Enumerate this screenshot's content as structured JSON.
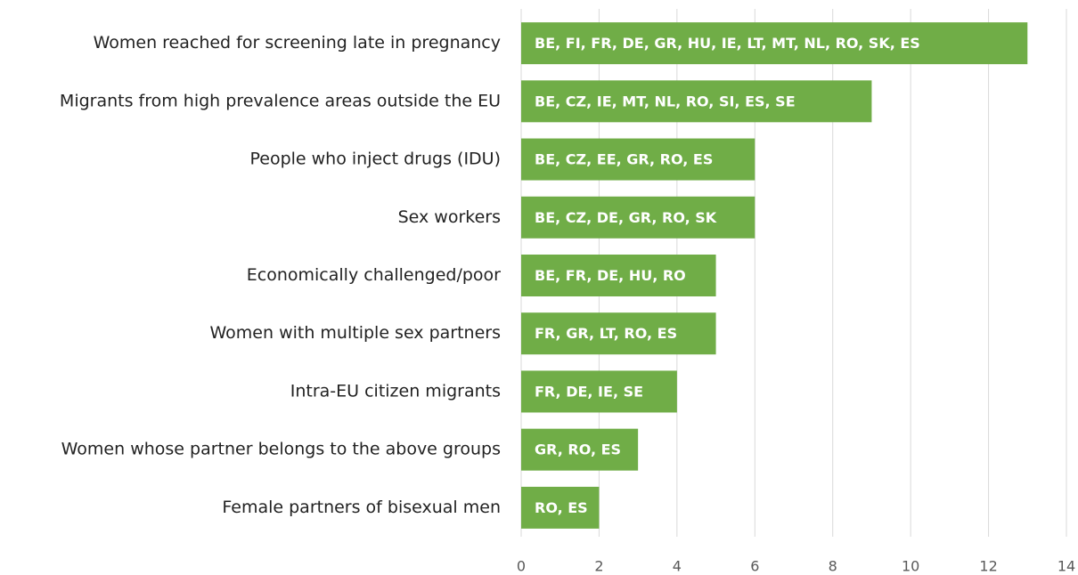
{
  "chart_data": {
    "type": "bar",
    "orientation": "horizontal",
    "categories": [
      "Women reached for screening late in pregnancy",
      "Migrants from high prevalence areas outside the EU",
      "People who inject drugs (IDU)",
      "Sex workers",
      "Economically challenged/poor",
      "Women with multiple sex partners",
      "Intra-EU citizen migrants",
      "Women whose partner belongs to the above groups",
      "Female partners of bisexual men"
    ],
    "values": [
      13,
      9,
      6,
      6,
      5,
      5,
      4,
      3,
      2
    ],
    "bar_labels": [
      "BE, FI, FR, DE, GR, HU, IE, LT, MT, NL, RO, SK, ES",
      "BE, CZ, IE, MT, NL, RO, SI, ES, SE",
      "BE, CZ, EE, GR, RO, ES",
      "BE, CZ, DE, GR, RO, SK",
      "BE, FR, DE, HU, RO",
      "FR, GR, LT, RO, ES",
      "FR, DE, IE, SE",
      "GR, RO, ES",
      "RO, ES"
    ],
    "color": "#70ad47",
    "xlim": [
      0,
      14
    ],
    "xticks": [
      0,
      2,
      4,
      6,
      8,
      10,
      12,
      14
    ],
    "grid": true
  }
}
